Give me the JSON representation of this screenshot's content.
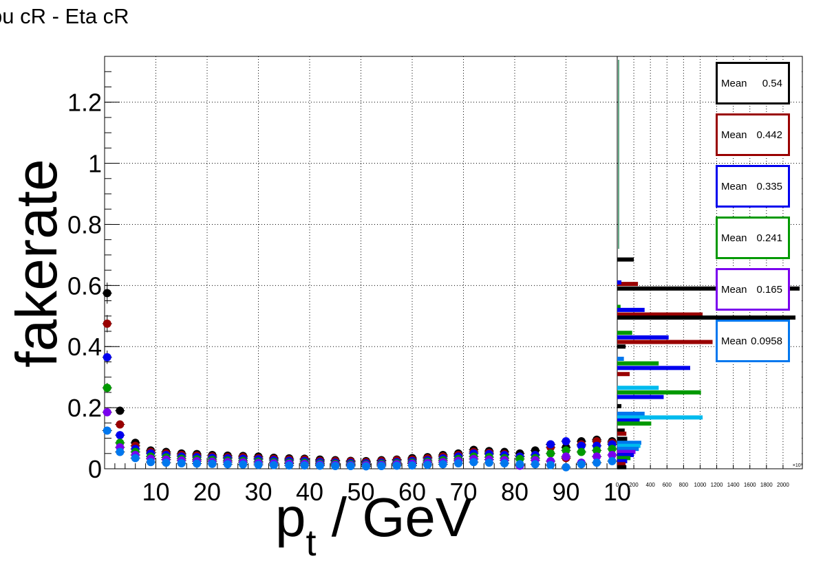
{
  "title": "pu cR - Eta cR",
  "chart_data": {
    "type": "scatter",
    "xlabel": "p_t / GeV",
    "ylabel": "fakerate",
    "xlim": [
      0,
      100
    ],
    "ylim": [
      0,
      1.35
    ],
    "x_ticks": [
      "10",
      "20",
      "30",
      "40",
      "50",
      "60",
      "70",
      "80",
      "90",
      "10"
    ],
    "y_ticks": [
      "0",
      "0.2",
      "0.4",
      "0.6",
      "0.8",
      "1",
      "1.2"
    ],
    "grid": true,
    "x": [
      0.5,
      3,
      6,
      9,
      12,
      15,
      18,
      21,
      24,
      27,
      30,
      33,
      36,
      39,
      42,
      45,
      48,
      51,
      54,
      57,
      60,
      63,
      66,
      69,
      72,
      75,
      78,
      81,
      84,
      87,
      90,
      93,
      96,
      99
    ],
    "series": [
      {
        "color": "#000000",
        "values": [
          0.575,
          0.19,
          0.085,
          0.06,
          0.055,
          0.05,
          0.048,
          0.045,
          0.043,
          0.042,
          0.04,
          0.036,
          0.034,
          0.033,
          0.03,
          0.028,
          0.026,
          0.025,
          0.028,
          0.03,
          0.035,
          0.038,
          0.045,
          0.05,
          0.062,
          0.058,
          0.055,
          0.05,
          0.06,
          0.08,
          0.07,
          0.09,
          0.095,
          0.09
        ]
      },
      {
        "color": "#990000",
        "values": [
          0.475,
          0.145,
          0.075,
          0.055,
          0.05,
          0.045,
          0.043,
          0.04,
          0.038,
          0.038,
          0.035,
          0.032,
          0.03,
          0.03,
          0.026,
          0.025,
          0.024,
          0.022,
          0.025,
          0.028,
          0.03,
          0.034,
          0.04,
          0.045,
          0.055,
          0.052,
          0.048,
          0.04,
          0.045,
          0.07,
          0.035,
          0.08,
          0.09,
          0.085
        ]
      },
      {
        "color": "#0000ee",
        "values": [
          0.365,
          0.11,
          0.065,
          0.05,
          0.045,
          0.04,
          0.038,
          0.036,
          0.034,
          0.033,
          0.031,
          0.028,
          0.026,
          0.025,
          0.022,
          0.02,
          0.019,
          0.018,
          0.02,
          0.022,
          0.025,
          0.028,
          0.034,
          0.04,
          0.05,
          0.048,
          0.045,
          0.04,
          0.045,
          0.08,
          0.09,
          0.075,
          0.075,
          0.08
        ]
      },
      {
        "color": "#009900",
        "values": [
          0.265,
          0.085,
          0.055,
          0.04,
          0.037,
          0.033,
          0.031,
          0.029,
          0.027,
          0.026,
          0.024,
          0.022,
          0.02,
          0.02,
          0.017,
          0.016,
          0.015,
          0.014,
          0.016,
          0.018,
          0.02,
          0.023,
          0.028,
          0.032,
          0.04,
          0.038,
          0.035,
          0.032,
          0.035,
          0.05,
          0.06,
          0.055,
          0.06,
          0.065
        ]
      },
      {
        "color": "#7a00ee",
        "values": [
          0.185,
          0.07,
          0.045,
          0.033,
          0.03,
          0.027,
          0.025,
          0.023,
          0.022,
          0.021,
          0.019,
          0.018,
          0.017,
          0.016,
          0.014,
          0.013,
          0.012,
          0.012,
          0.013,
          0.015,
          0.017,
          0.019,
          0.022,
          0.026,
          0.032,
          0.03,
          0.028,
          0.01,
          0.028,
          0.025,
          0.04,
          0.02,
          0.04,
          0.045
        ]
      },
      {
        "color": "#0077ee",
        "values": [
          0.125,
          0.055,
          0.035,
          0.022,
          0.02,
          0.018,
          0.017,
          0.016,
          0.015,
          0.014,
          0.013,
          0.012,
          0.011,
          0.011,
          0.01,
          0.009,
          0.009,
          0.008,
          0.009,
          0.01,
          0.011,
          0.013,
          0.015,
          0.018,
          0.022,
          0.02,
          0.018,
          0.015,
          0.015,
          0.012,
          0.005,
          0.015,
          0.02,
          0.025
        ]
      }
    ],
    "side_histogram": {
      "x_ticks": [
        "0",
        "200",
        "400",
        "600",
        "800",
        "1000",
        "1200",
        "1400",
        "1600",
        "1800",
        "2000"
      ],
      "x_range": [
        0,
        2200
      ],
      "x_exponent": "×10³",
      "bars": [
        {
          "color": "#000000",
          "y": 0.685,
          "value": 200
        },
        {
          "color": "#990000",
          "y": 0.605,
          "value": 250
        },
        {
          "color": "#0000ee",
          "y": 0.61,
          "value": 50
        },
        {
          "color": "#000000",
          "y": 0.59,
          "value": 2200
        },
        {
          "color": "#009900",
          "y": 0.53,
          "value": 40
        },
        {
          "color": "#0000ee",
          "y": 0.52,
          "value": 330
        },
        {
          "color": "#990000",
          "y": 0.505,
          "value": 1030
        },
        {
          "color": "#000000",
          "y": 0.495,
          "value": 2150
        },
        {
          "color": "#009900",
          "y": 0.445,
          "value": 180
        },
        {
          "color": "#0000ee",
          "y": 0.43,
          "value": 620
        },
        {
          "color": "#990000",
          "y": 0.415,
          "value": 1150
        },
        {
          "color": "#000000",
          "y": 0.4,
          "value": 100
        },
        {
          "color": "#0077ee",
          "y": 0.36,
          "value": 80
        },
        {
          "color": "#009900",
          "y": 0.345,
          "value": 500
        },
        {
          "color": "#0000ee",
          "y": 0.33,
          "value": 880
        },
        {
          "color": "#990000",
          "y": 0.31,
          "value": 150
        },
        {
          "color": "#00bbee",
          "y": 0.265,
          "value": 500
        },
        {
          "color": "#009900",
          "y": 0.25,
          "value": 1010
        },
        {
          "color": "#0000ee",
          "y": 0.235,
          "value": 560
        },
        {
          "color": "#000000",
          "y": 0.205,
          "value": 50
        },
        {
          "color": "#0077ee",
          "y": 0.18,
          "value": 330
        },
        {
          "color": "#00bbee",
          "y": 0.168,
          "value": 1030
        },
        {
          "color": "#0000ee",
          "y": 0.158,
          "value": 270
        },
        {
          "color": "#009900",
          "y": 0.148,
          "value": 410
        },
        {
          "color": "#000000",
          "y": 0.125,
          "value": 90
        },
        {
          "color": "#990000",
          "y": 0.115,
          "value": 110
        },
        {
          "color": "#000000",
          "y": 0.098,
          "value": 120
        },
        {
          "color": "#0077ee",
          "y": 0.085,
          "value": 290
        },
        {
          "color": "#00bbee",
          "y": 0.075,
          "value": 280
        },
        {
          "color": "#0077ee",
          "y": 0.065,
          "value": 260
        },
        {
          "color": "#7a00ee",
          "y": 0.055,
          "value": 220
        },
        {
          "color": "#0000ee",
          "y": 0.045,
          "value": 200
        },
        {
          "color": "#009900",
          "y": 0.035,
          "value": 160
        },
        {
          "color": "#0000ee",
          "y": 0.025,
          "value": 120
        },
        {
          "color": "#990000",
          "y": 0.015,
          "value": 100
        },
        {
          "color": "#000000",
          "y": 0.005,
          "value": 110
        }
      ]
    },
    "stat_boxes": [
      {
        "label": "Mean",
        "value": "0.54",
        "color": "#000000"
      },
      {
        "label": "Mean",
        "value": "0.442",
        "color": "#990000"
      },
      {
        "label": "Mean",
        "value": "0.335",
        "color": "#0000ee"
      },
      {
        "label": "Mean",
        "value": "0.241",
        "color": "#009900"
      },
      {
        "label": "Mean",
        "value": "0.165",
        "color": "#7a00ee"
      },
      {
        "label": "Mean",
        "value": "0.0958",
        "color": "#0077ee"
      }
    ]
  }
}
